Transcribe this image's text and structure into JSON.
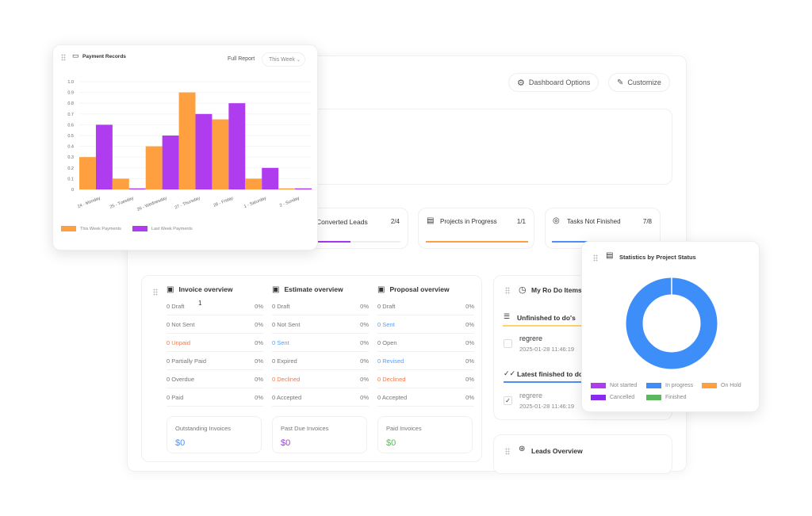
{
  "header": {
    "dashboard_options": "Dashboard Options",
    "customize": "Customize"
  },
  "stats": [
    {
      "label": "Converted Leads",
      "value": "2/4",
      "progress": 0.5,
      "color": "#a436f0"
    },
    {
      "label": "Projects in Progress",
      "value": "1/1",
      "progress": 1.0,
      "color": "#ffa040"
    },
    {
      "label": "Tasks Not Finished",
      "value": "7/8",
      "progress": 0.875,
      "color": "#4f8ff7"
    }
  ],
  "overview": {
    "marker": "1",
    "columns": [
      {
        "title": "Invoice overview",
        "rows": [
          [
            "0 Draft",
            "0%",
            ""
          ],
          [
            "0 Not Sent",
            "0%",
            ""
          ],
          [
            "0 Unpaid",
            "0%",
            "orange"
          ],
          [
            "0 Partially Paid",
            "0%",
            ""
          ],
          [
            "0 Overdue",
            "0%",
            ""
          ],
          [
            "0 Paid",
            "0%",
            ""
          ]
        ],
        "summary": {
          "label": "Outstanding Invoices",
          "value": "$0",
          "color": "#4f8ff7"
        }
      },
      {
        "title": "Estimate overview",
        "rows": [
          [
            "0 Draft",
            "0%",
            ""
          ],
          [
            "0 Not Sent",
            "0%",
            ""
          ],
          [
            "0 Sent",
            "0%",
            "blue"
          ],
          [
            "0 Expired",
            "0%",
            ""
          ],
          [
            "0 Declined",
            "0%",
            "orange"
          ],
          [
            "0 Accepted",
            "0%",
            ""
          ]
        ],
        "summary": {
          "label": "Past Due Invoices",
          "value": "$0",
          "color": "#a436f0"
        }
      },
      {
        "title": "Proposal overview",
        "rows": [
          [
            "0 Draft",
            "0%",
            ""
          ],
          [
            "0 Sent",
            "0%",
            "blue"
          ],
          [
            "0 Open",
            "0%",
            ""
          ],
          [
            "0 Revised",
            "0%",
            "blue"
          ],
          [
            "0 Declined",
            "0%",
            "orange"
          ],
          [
            "0 Accepted",
            "0%",
            ""
          ]
        ],
        "summary": {
          "label": "Paid Invoices",
          "value": "$0",
          "color": "#5cb85c"
        }
      }
    ]
  },
  "todo": {
    "title": "My Ro Do Items",
    "unfinished": "Unfinished to do's",
    "finished": "Latest finished to do's",
    "unfinished_item": {
      "text": "regrere",
      "date": "2025-01-28 11:46:19"
    },
    "finished_item": {
      "text": "regrere",
      "date": "2025-01-28 11:46:19"
    }
  },
  "leads": {
    "title": "Leads Overview"
  },
  "payment": {
    "title": "Payment Records",
    "full_report": "Full Report",
    "period": "This Week"
  },
  "chart_data": [
    {
      "type": "bar",
      "title": "Payment Records",
      "categories": [
        "24 - Monday",
        "25 - Tuesday",
        "26 - Wednesday",
        "27 - Thursday",
        "28 - Friday",
        "1 - Saturday",
        "2 - Sunday"
      ],
      "series": [
        {
          "name": "This Week Payments",
          "color": "#ffa040",
          "values": [
            0.3,
            0.1,
            0.4,
            0.9,
            0.65,
            0.1,
            0.01
          ]
        },
        {
          "name": "Last Week Payments",
          "color": "#b03cf0",
          "values": [
            0.6,
            0.01,
            0.5,
            0.7,
            0.8,
            0.2,
            0.01
          ]
        }
      ],
      "yticks": [
        "0",
        "0.1",
        "0.2",
        "0.3",
        "0.4",
        "0.5",
        "0.6",
        "0.7",
        "0.8",
        "0.9",
        "1.0"
      ],
      "ylim": [
        0,
        1
      ],
      "legend": "bottom-left"
    },
    {
      "type": "pie",
      "title": "Statistics by Project Status",
      "donut": true,
      "labels": [
        "Not started",
        "In progress",
        "On Hold",
        "Cancelled",
        "Finished"
      ],
      "colors": [
        "#b03cf0",
        "#3d8ef8",
        "#ffa040",
        "#8a2cf0",
        "#5cb85c"
      ],
      "values": [
        0,
        1,
        0,
        0,
        0
      ]
    }
  ]
}
